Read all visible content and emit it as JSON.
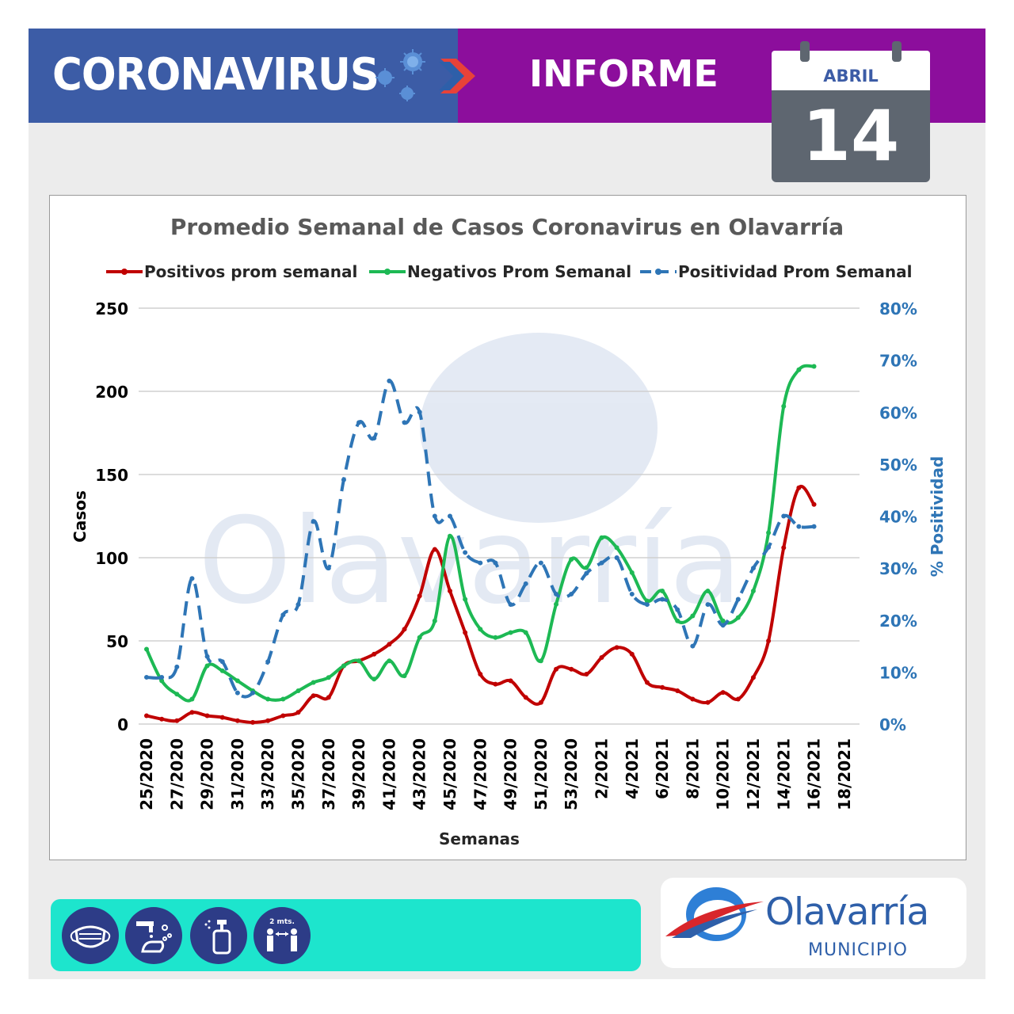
{
  "header": {
    "title_left": "CORONAVIRUS",
    "title_right": "INFORME",
    "calendar_month": "ABRIL",
    "calendar_day": "14"
  },
  "colors": {
    "header_blue": "#3c5ca6",
    "header_purple": "#8c0e9c",
    "positivos": "#c00000",
    "negativos": "#1db954",
    "positividad": "#2e75b6",
    "bottom_bar": "#1de5cd",
    "icon_circle": "#2d3c87"
  },
  "icons": [
    "mask-icon",
    "hand-washing-icon",
    "sanitizer-spray-icon",
    "social-distance-icon"
  ],
  "distance_label": "2 mts.",
  "logo": {
    "name": "Olavarría",
    "subtitle": "MUNICIPIO"
  },
  "chart_data": {
    "type": "line",
    "title": "Promedio Semanal de Casos Coronavirus en Olavarría",
    "xlabel": "Semanas",
    "ylabel": "Casos",
    "y2label": "% Positividad",
    "ylim": [
      0,
      250
    ],
    "y2lim": [
      0,
      80
    ],
    "yticks": [
      "0",
      "50",
      "100",
      "150",
      "200",
      "250"
    ],
    "y2ticks": [
      "0%",
      "10%",
      "20%",
      "30%",
      "40%",
      "50%",
      "60%",
      "70%",
      "80%"
    ],
    "grid": true,
    "legend_position": "top",
    "x_labels": [
      "25/2020",
      "27/2020",
      "29/2020",
      "31/2020",
      "33/2020",
      "35/2020",
      "37/2020",
      "39/2020",
      "41/2020",
      "43/2020",
      "45/2020",
      "47/2020",
      "49/2020",
      "51/2020",
      "53/2020",
      "2/2021",
      "4/2021",
      "6/2021",
      "8/2021",
      "10/2021",
      "12/2021",
      "14/2021",
      "16/2021",
      "18/2021"
    ],
    "series": [
      {
        "name": "Positivos prom semanal",
        "axis": "left",
        "style": "solid",
        "values": [
          5,
          3,
          2,
          7,
          5,
          4,
          2,
          1,
          2,
          5,
          7,
          17,
          16,
          35,
          38,
          42,
          48,
          57,
          77,
          105,
          80,
          55,
          30,
          24,
          26,
          16,
          13,
          33,
          33,
          30,
          40,
          46,
          42,
          25,
          22,
          20,
          15,
          13,
          19,
          15,
          28,
          50,
          106,
          142,
          132
        ]
      },
      {
        "name": "Negativos Prom Semanal",
        "axis": "left",
        "style": "solid",
        "values": [
          45,
          26,
          18,
          15,
          35,
          32,
          26,
          20,
          15,
          15,
          20,
          25,
          28,
          35,
          38,
          27,
          38,
          29,
          52,
          62,
          113,
          75,
          57,
          52,
          55,
          55,
          38,
          72,
          99,
          94,
          112,
          106,
          91,
          74,
          80,
          62,
          65,
          80,
          62,
          64,
          80,
          115,
          191,
          213,
          215
        ]
      },
      {
        "name": "Positividad Prom Semanal",
        "axis": "right",
        "style": "dashed",
        "values": [
          9,
          9,
          11,
          28,
          13,
          12,
          6,
          6,
          12,
          21,
          23,
          39,
          30,
          47,
          58,
          55,
          66,
          58,
          60,
          40,
          40,
          33,
          31,
          31,
          23,
          27,
          31,
          25,
          25,
          29,
          31,
          32,
          25,
          23,
          24,
          22,
          15,
          23,
          19,
          24,
          30,
          34,
          40,
          38,
          38
        ]
      }
    ]
  }
}
